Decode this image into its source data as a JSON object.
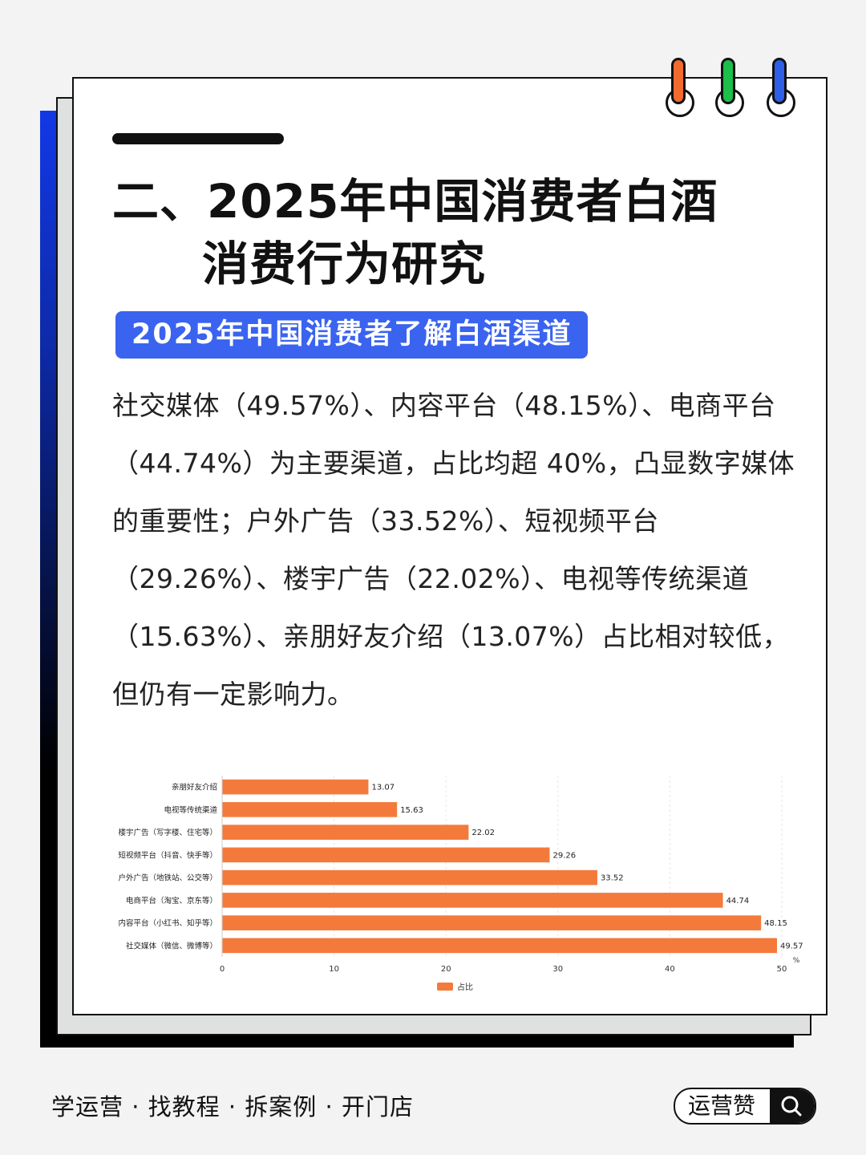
{
  "title_line1": "二、2025年中国消费者白酒",
  "title_line2": "消费行为研究",
  "subtitle_badge": "2025年中国消费者了解白酒渠道",
  "body_text": "社交媒体（49.57%）、内容平台（48.15%）、电商平台（44.74%）为主要渠道，占比均超 40%，凸显数字媒体的重要性；户外广告（33.52%）、短视频平台（29.26%）、楼宇广告（22.02%）、电视等传统渠道（15.63%）、亲朋好友介绍（13.07%）占比相对较低，但仍有一定影响力。",
  "colors": {
    "accent_blue": "#3a63ef",
    "bar": "#f47a3c",
    "peg_orange": "#f26b2e",
    "peg_green": "#1bbf4a",
    "peg_blue": "#2f5fe8"
  },
  "chart_data": {
    "type": "bar",
    "orientation": "horizontal",
    "categories": [
      "亲朋好友介绍",
      "电视等传统渠道",
      "楼宇广告（写字楼、住宅等）",
      "短视频平台（抖音、快手等）",
      "户外广告（地铁站、公交等）",
      "电商平台（淘宝、京东等）",
      "内容平台（小红书、知乎等）",
      "社交媒体（微信、微博等）"
    ],
    "series": [
      {
        "name": "占比",
        "values": [
          13.07,
          15.63,
          22.02,
          29.26,
          33.52,
          44.74,
          48.15,
          49.57
        ]
      }
    ],
    "xlim": [
      0,
      50
    ],
    "xticks": [
      "0",
      "10",
      "20",
      "30",
      "40",
      "50"
    ],
    "xunit": "%",
    "grid": true,
    "legend": "bottom"
  },
  "footer": {
    "tagline": "学运营 · 找教程 · 拆案例 · 开门店",
    "search_label": "运营赞"
  },
  "icons": {
    "search": "search-icon"
  }
}
